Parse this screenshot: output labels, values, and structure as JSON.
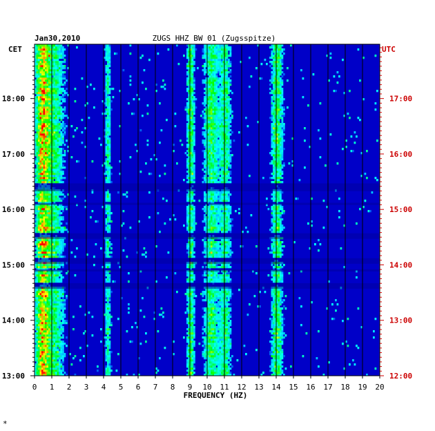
{
  "chart_data": {
    "type": "heatmap",
    "title": "ZUGS HHZ BW 01 (Zugsspitze)",
    "date": "Jan30,2010",
    "xlabel": "FREQUENCY (HZ)",
    "left_axis_label": "CET",
    "right_axis_label": "UTC",
    "xlim": [
      0,
      20
    ],
    "x_ticks": [
      "0",
      "1",
      "2",
      "3",
      "4",
      "5",
      "6",
      "7",
      "8",
      "9",
      "10",
      "11",
      "12",
      "13",
      "14",
      "15",
      "16",
      "17",
      "18",
      "19",
      "20"
    ],
    "y_ticks_cet": [
      "13:00",
      "14:00",
      "15:00",
      "16:00",
      "17:00",
      "18:00"
    ],
    "y_ticks_utc": [
      "12:00",
      "13:00",
      "14:00",
      "15:00",
      "16:00",
      "17:00"
    ],
    "time_range_cet_hours": [
      13.0,
      18.98
    ],
    "quiet_bands_cet_hours": [
      [
        16.33,
        16.47
      ],
      [
        15.47,
        15.57
      ],
      [
        15.02,
        15.12
      ],
      [
        14.57,
        14.67
      ],
      [
        14.88,
        14.92
      ],
      [
        16.08,
        16.12
      ]
    ],
    "spectral_features": [
      {
        "freq_hz": 0.4,
        "level": 0.95,
        "width_hz": 0.35
      },
      {
        "freq_hz": 1.0,
        "level": 0.55,
        "width_hz": 0.6
      },
      {
        "freq_hz": 4.2,
        "level": 0.45,
        "width_hz": 0.15
      },
      {
        "freq_hz": 9.0,
        "level": 0.6,
        "width_hz": 0.2
      },
      {
        "freq_hz": 10.2,
        "level": 0.55,
        "width_hz": 0.4
      },
      {
        "freq_hz": 11.0,
        "level": 0.5,
        "width_hz": 0.3
      },
      {
        "freq_hz": 14.0,
        "level": 0.6,
        "width_hz": 0.3
      }
    ],
    "colors": {
      "background": "#0000c8",
      "grid": "#000000",
      "cet_text": "#000000",
      "utc_text": "#cc0000"
    }
  },
  "footnote": "*"
}
